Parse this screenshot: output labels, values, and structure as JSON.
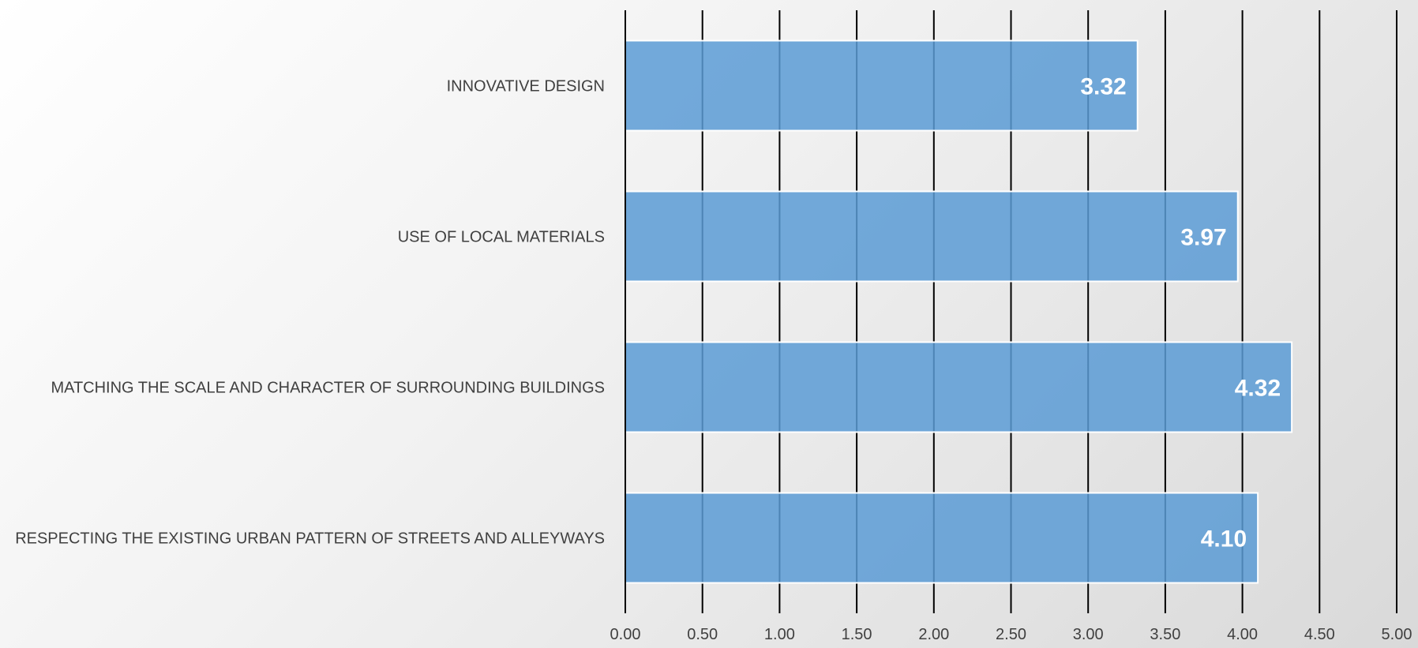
{
  "chart_data": {
    "type": "bar",
    "orientation": "horizontal",
    "categories": [
      "INNOVATIVE   DESIGN",
      "USE OF LOCAL MATERIALS",
      "MATCHING THE SCALE AND CHARACTER OF SURROUNDING BUILDINGS",
      "RESPECTING THE EXISTING URBAN PATTERN OF STREETS AND ALLEYWAYS"
    ],
    "values": [
      3.32,
      3.97,
      4.32,
      4.1
    ],
    "data_labels": [
      "3.32",
      "3.97",
      "4.32",
      "4.10"
    ],
    "xlim": [
      0,
      5
    ],
    "x_ticks": [
      "0.00",
      "0.50",
      "1.00",
      "1.50",
      "2.00",
      "2.50",
      "3.00",
      "3.50",
      "4.00",
      "4.50",
      "5.00"
    ],
    "grid": true,
    "legend": "none",
    "colors": {
      "bar": "#5b9bd5",
      "bar_stroke": "#ffffff",
      "grid_line": "#000000",
      "text": "#404040",
      "data_label": "#ffffff"
    }
  }
}
